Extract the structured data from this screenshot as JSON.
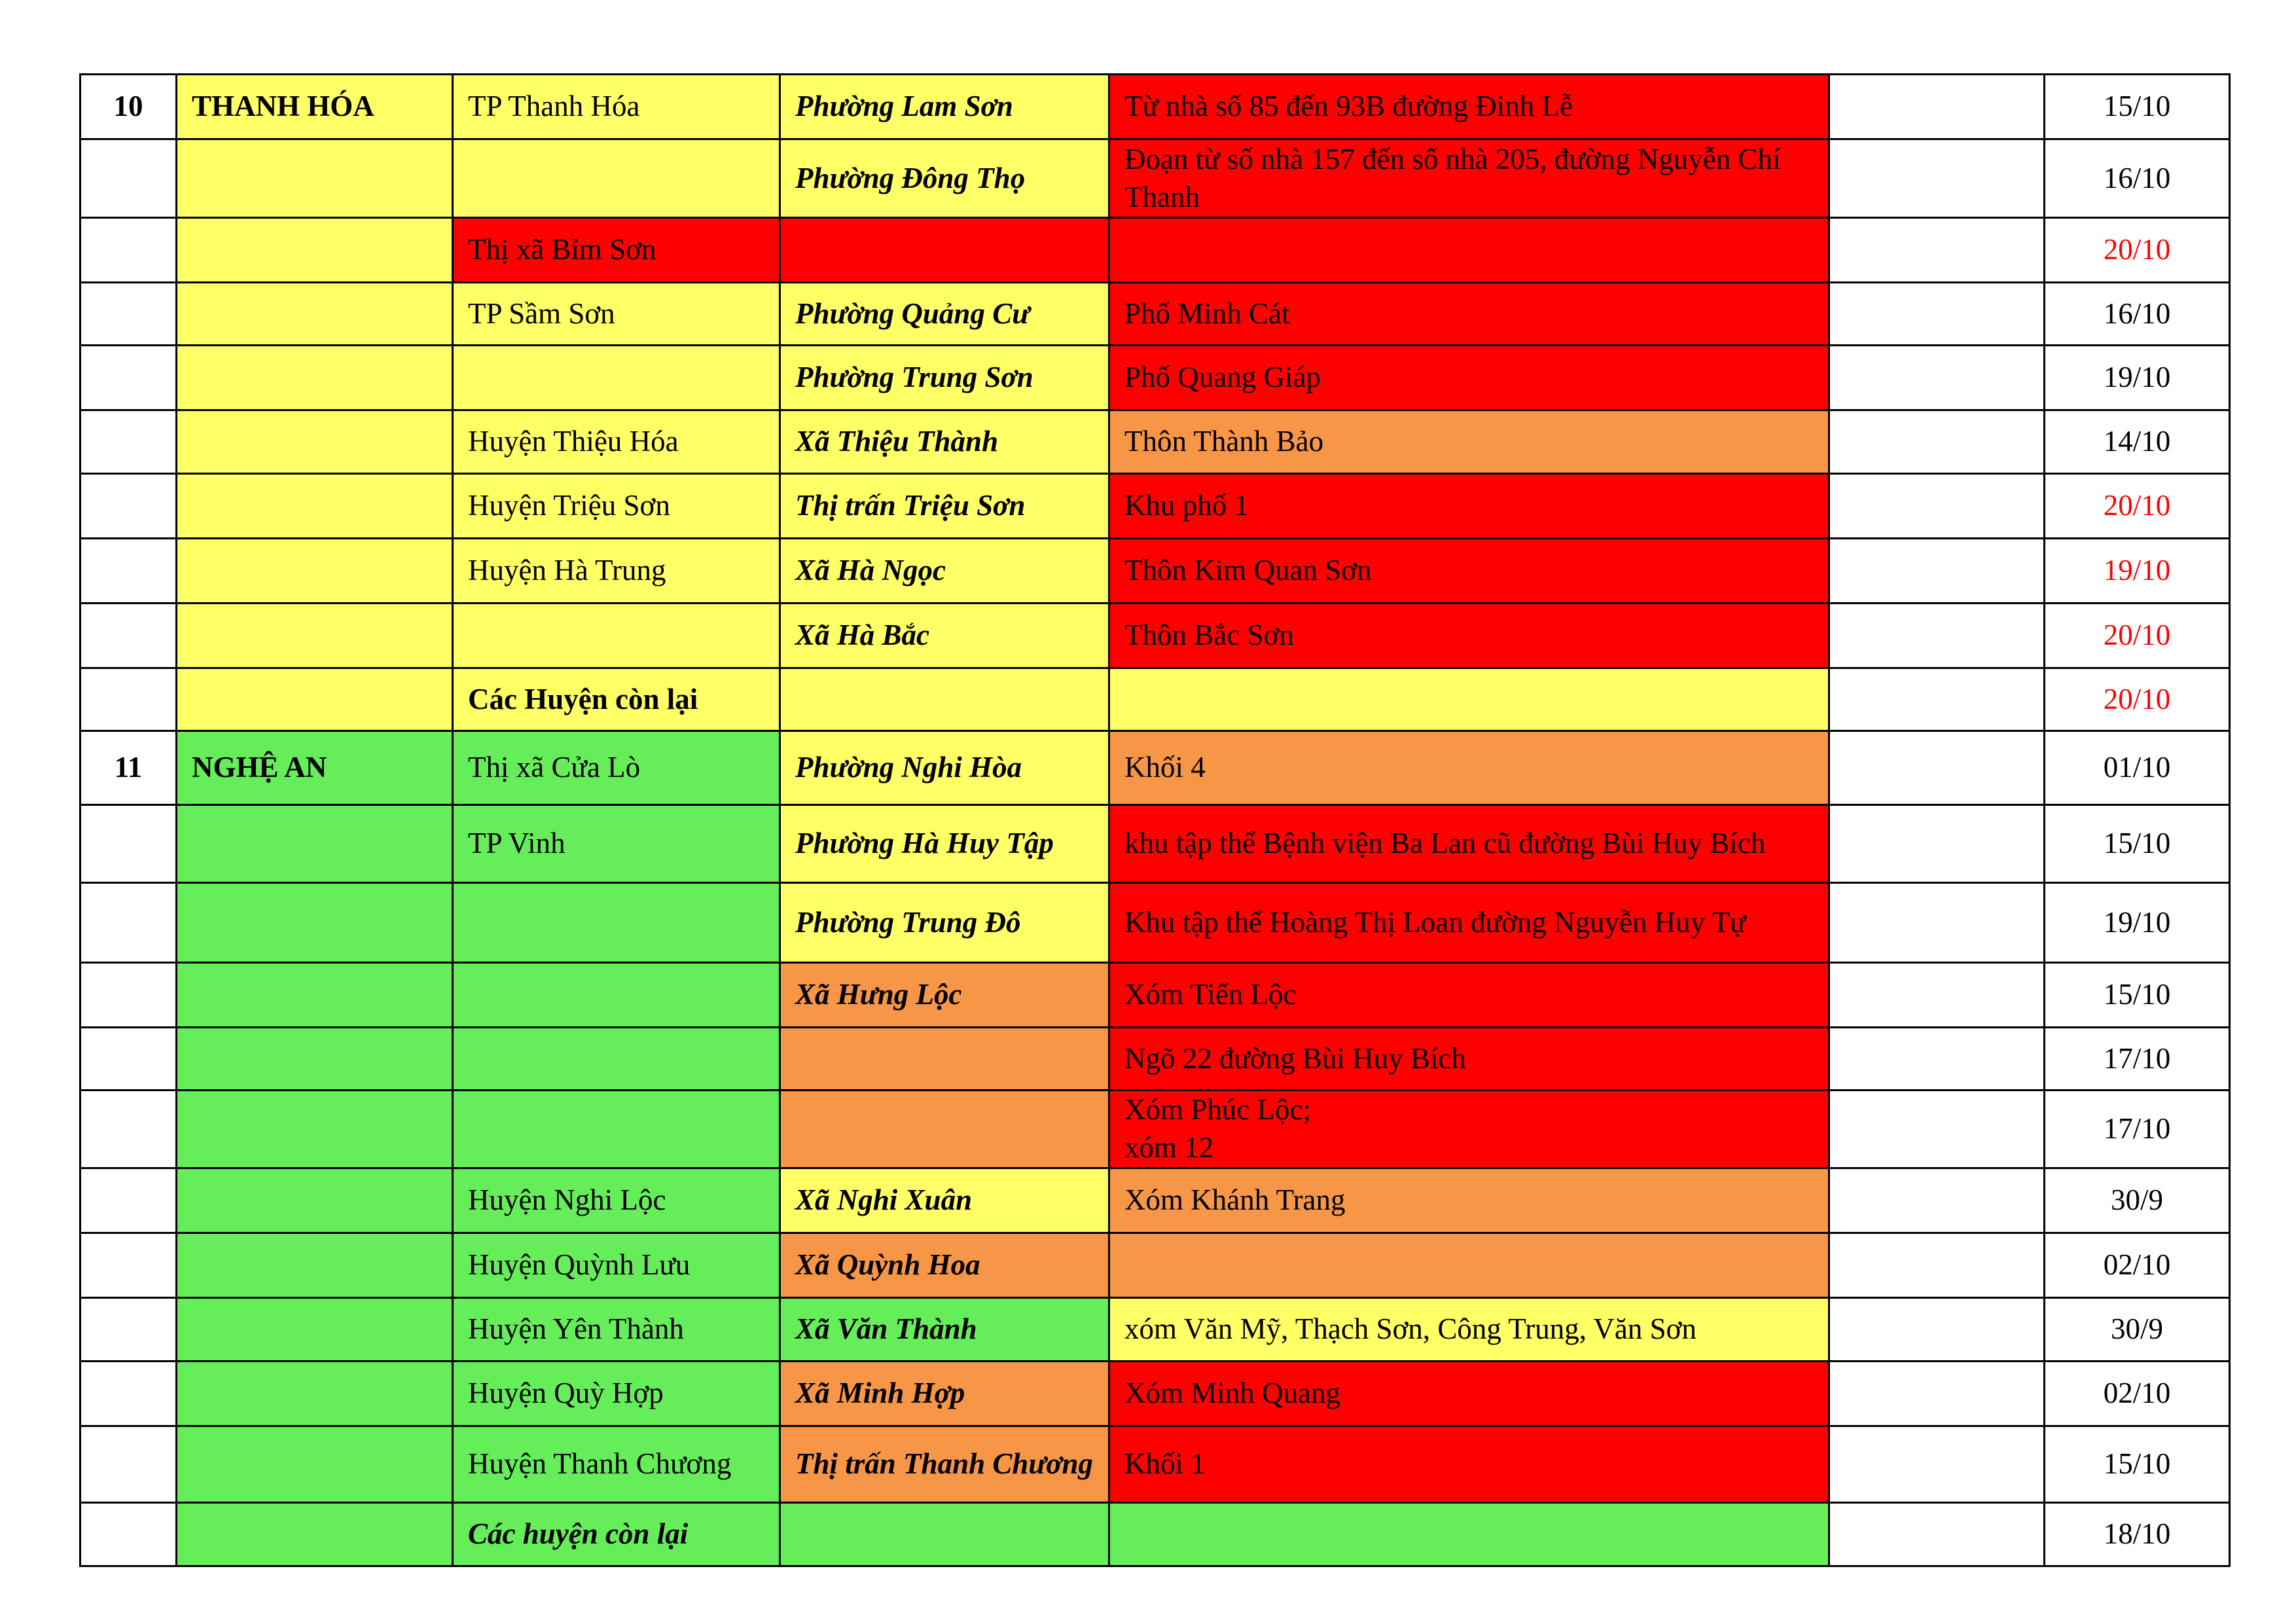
{
  "colors": {
    "white": "#FFFFFF",
    "yellow": "#FFFF66",
    "red": "#FF0000",
    "orange": "#F79646",
    "green": "#66EE5A",
    "date_red": "#FF0000",
    "date_black": "#000000"
  },
  "rows": [
    {
      "num": "10",
      "province": "THANH HÓA",
      "district": "TP Thanh Hóa",
      "ward": "Phường Lam Sơn",
      "detail": "Từ nhà số 85 đến 93B đường Đinh Lễ",
      "date": "15/10",
      "prov_bg": "yellow",
      "dist_bg": "yellow",
      "ward_bg": "yellow",
      "detail_bg": "red",
      "date_color": "date_black"
    },
    {
      "num": "",
      "province": "",
      "district": "",
      "ward": "Phường Đông Thọ",
      "detail": "Đoạn từ số nhà 157 đến số nhà 205, đường Nguyễn Chí Thanh",
      "date": "16/10",
      "prov_bg": "yellow",
      "dist_bg": "yellow",
      "ward_bg": "yellow",
      "detail_bg": "red",
      "date_color": "date_black"
    },
    {
      "num": "",
      "province": "",
      "district": "Thị xã Bỉm Sơn",
      "ward": "",
      "detail": "",
      "date": "20/10",
      "prov_bg": "yellow",
      "dist_bg": "red",
      "ward_bg": "red",
      "detail_bg": "red",
      "date_color": "date_red"
    },
    {
      "num": "",
      "province": "",
      "district": "TP Sầm Sơn",
      "ward": "Phường Quảng Cư",
      "detail": "Phố Minh Cát",
      "date": "16/10",
      "prov_bg": "yellow",
      "dist_bg": "yellow",
      "ward_bg": "yellow",
      "detail_bg": "red",
      "date_color": "date_black"
    },
    {
      "num": "",
      "province": "",
      "district": "",
      "ward": "Phường Trung Sơn",
      "detail": "Phố Quang Giáp",
      "date": "19/10",
      "prov_bg": "yellow",
      "dist_bg": "yellow",
      "ward_bg": "yellow",
      "detail_bg": "red",
      "date_color": "date_black"
    },
    {
      "num": "",
      "province": "",
      "district": "Huyện Thiệu Hóa",
      "ward": "Xã Thiệu Thành",
      "detail": "Thôn Thành Bảo",
      "date": "14/10",
      "prov_bg": "yellow",
      "dist_bg": "yellow",
      "ward_bg": "yellow",
      "detail_bg": "orange",
      "date_color": "date_black"
    },
    {
      "num": "",
      "province": "",
      "district": "Huyện Triệu Sơn",
      "ward": "Thị trấn Triệu Sơn",
      "detail": "Khu phố 1",
      "date": "20/10",
      "prov_bg": "yellow",
      "dist_bg": "yellow",
      "ward_bg": "yellow",
      "detail_bg": "red",
      "date_color": "date_red"
    },
    {
      "num": "",
      "province": "",
      "district": "Huyện Hà Trung",
      "ward": "Xã Hà Ngọc",
      "detail": "Thôn Kim Quan Sơn",
      "date": "19/10",
      "prov_bg": "yellow",
      "dist_bg": "yellow",
      "ward_bg": "yellow",
      "detail_bg": "red",
      "date_color": "date_red"
    },
    {
      "num": "",
      "province": "",
      "district": "",
      "ward": "Xã Hà Bắc",
      "detail": "Thôn Bắc Sơn",
      "date": "20/10",
      "prov_bg": "yellow",
      "dist_bg": "yellow",
      "ward_bg": "yellow",
      "detail_bg": "red",
      "date_color": "date_red"
    },
    {
      "num": "",
      "province": "",
      "district": "Các Huyện còn lại",
      "district_style": "b",
      "ward": "",
      "detail": "",
      "date": "20/10",
      "prov_bg": "yellow",
      "dist_bg": "yellow",
      "ward_bg": "yellow",
      "detail_bg": "yellow",
      "date_color": "date_red"
    },
    {
      "num": "11",
      "province": "NGHỆ AN",
      "district": "Thị xã Cửa Lò",
      "ward": "Phường Nghi Hòa",
      "detail": "Khối 4",
      "date": "01/10",
      "prov_bg": "green",
      "dist_bg": "green",
      "ward_bg": "yellow",
      "detail_bg": "orange",
      "date_color": "date_black"
    },
    {
      "num": "",
      "province": "",
      "district": "TP Vinh",
      "ward": "Phường Hà Huy Tập",
      "detail": "khu tập thể Bệnh viện Ba Lan cũ đường Bùi Huy Bích",
      "date": "15/10",
      "prov_bg": "green",
      "dist_bg": "green",
      "ward_bg": "yellow",
      "detail_bg": "red",
      "date_color": "date_black"
    },
    {
      "num": "",
      "province": "",
      "district": "",
      "ward": "Phường Trung Đô",
      "detail": "Khu tập thể Hoàng Thị Loan đường Nguyễn Huy Tự",
      "date": "19/10",
      "prov_bg": "green",
      "dist_bg": "green",
      "ward_bg": "yellow",
      "detail_bg": "red",
      "date_color": "date_black"
    },
    {
      "num": "",
      "province": "",
      "district": "",
      "ward": "Xã Hưng Lộc",
      "detail": "Xóm Tiến Lộc",
      "date": "15/10",
      "prov_bg": "green",
      "dist_bg": "green",
      "ward_bg": "orange",
      "detail_bg": "red",
      "date_color": "date_black"
    },
    {
      "num": "",
      "province": "",
      "district": "",
      "ward": "",
      "detail": "Ngõ 22 đường Bùi Huy Bích",
      "date": "17/10",
      "prov_bg": "green",
      "dist_bg": "green",
      "ward_bg": "orange",
      "detail_bg": "red",
      "date_color": "date_black"
    },
    {
      "num": "",
      "province": "",
      "district": "",
      "ward": "",
      "detail": "Xóm Phúc Lộc;\nxóm 12",
      "date": "17/10",
      "prov_bg": "green",
      "dist_bg": "green",
      "ward_bg": "orange",
      "detail_bg": "red",
      "date_color": "date_black"
    },
    {
      "num": "",
      "province": "",
      "district": "Huyện Nghi Lộc",
      "ward": "Xã Nghi Xuân",
      "detail": "Xóm Khánh Trang",
      "date": "30/9",
      "prov_bg": "green",
      "dist_bg": "green",
      "ward_bg": "yellow",
      "detail_bg": "orange",
      "date_color": "date_black"
    },
    {
      "num": "",
      "province": "",
      "district": "Huyện Quỳnh Lưu",
      "ward": "Xã Quỳnh Hoa",
      "detail": "",
      "date": "02/10",
      "prov_bg": "green",
      "dist_bg": "green",
      "ward_bg": "orange",
      "detail_bg": "orange",
      "date_color": "date_black"
    },
    {
      "num": "",
      "province": "",
      "district": "Huyện Yên Thành",
      "ward": "Xã Văn Thành",
      "detail": "xóm Văn Mỹ, Thạch Sơn, Công Trung, Văn Sơn",
      "date": "30/9",
      "prov_bg": "green",
      "dist_bg": "green",
      "ward_bg": "green",
      "detail_bg": "yellow",
      "date_color": "date_black"
    },
    {
      "num": "",
      "province": "",
      "district": "Huyện Quỳ Hợp",
      "ward": "Xã Minh Hợp",
      "detail": "Xóm Minh Quang",
      "date": "02/10",
      "prov_bg": "green",
      "dist_bg": "green",
      "ward_bg": "orange",
      "detail_bg": "red",
      "date_color": "date_black"
    },
    {
      "num": "",
      "province": "",
      "district": "Huyện Thanh Chương",
      "ward": "Thị trấn Thanh Chương",
      "detail": "Khối 1",
      "date": "15/10",
      "prov_bg": "green",
      "dist_bg": "green",
      "ward_bg": "orange",
      "detail_bg": "red",
      "date_color": "date_black"
    },
    {
      "num": "",
      "province": "",
      "district": "Các huyện còn lại",
      "district_style": "bi",
      "ward": "",
      "detail": "",
      "date": "18/10",
      "prov_bg": "green",
      "dist_bg": "green",
      "ward_bg": "green",
      "detail_bg": "green",
      "date_color": "date_black"
    }
  ]
}
